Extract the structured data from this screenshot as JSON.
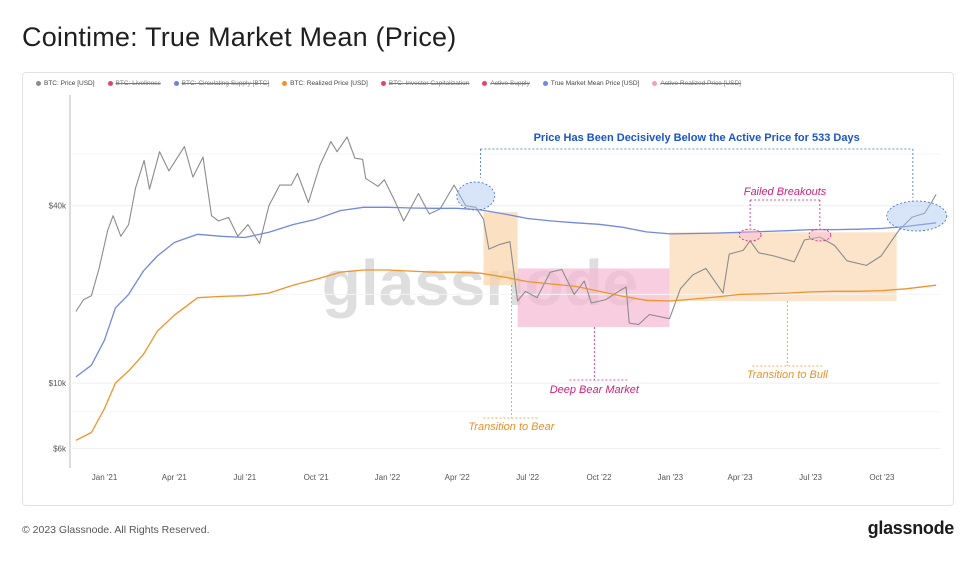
{
  "page": {
    "title": "Cointime: True Market Mean (Price)",
    "copyright": "© 2023 Glassnode. All Rights Reserved.",
    "logo": "glassnode",
    "watermark": "glassnode"
  },
  "legend": [
    {
      "label": "BTC: Price [USD]",
      "color": "#8c8c8c",
      "enabled": true
    },
    {
      "label": "BTC: Liveliness",
      "color": "#e0466b",
      "enabled": false
    },
    {
      "label": "BTC: Circulating Supply [BTC]",
      "color": "#6f82d8",
      "enabled": false
    },
    {
      "label": "BTC: Realized Price [USD]",
      "color": "#f0932b",
      "enabled": true
    },
    {
      "label": "BTC: Investor Capitalization",
      "color": "#e0466b",
      "enabled": false
    },
    {
      "label": "Active Supply",
      "color": "#e0466b",
      "enabled": false
    },
    {
      "label": "True Market Mean Price [USD]",
      "color": "#7189e0",
      "enabled": true
    },
    {
      "label": "Active Realized Price [USD]",
      "color": "#f2a1b5",
      "enabled": false
    }
  ],
  "chart_data": {
    "type": "line",
    "yscale": "log",
    "ylim": [
      5400,
      95000
    ],
    "xlim": [
      "2020-11-20",
      "2023-12-15"
    ],
    "y_ticks": [
      {
        "value": 6000,
        "label": "$6k"
      },
      {
        "value": 10000,
        "label": "$10k"
      },
      {
        "value": 40000,
        "label": "$40k"
      }
    ],
    "x_ticks": [
      {
        "date": "2021-01-01",
        "label": "Jan '21"
      },
      {
        "date": "2021-04-01",
        "label": "Apr '21"
      },
      {
        "date": "2021-07-01",
        "label": "Jul '21"
      },
      {
        "date": "2021-10-01",
        "label": "Oct '21"
      },
      {
        "date": "2022-01-01",
        "label": "Jan '22"
      },
      {
        "date": "2022-04-01",
        "label": "Apr '22"
      },
      {
        "date": "2022-07-01",
        "label": "Jul '22"
      },
      {
        "date": "2022-10-01",
        "label": "Oct '22"
      },
      {
        "date": "2023-01-01",
        "label": "Jan '23"
      },
      {
        "date": "2023-04-01",
        "label": "Apr '23"
      },
      {
        "date": "2023-07-01",
        "label": "Jul '23"
      },
      {
        "date": "2023-10-01",
        "label": "Oct '23"
      }
    ],
    "series": [
      {
        "name": "BTC: Price [USD]",
        "color": "#8c8c8c",
        "points": [
          [
            "2020-11-25",
            17500
          ],
          [
            "2020-12-05",
            19200
          ],
          [
            "2020-12-15",
            19800
          ],
          [
            "2020-12-25",
            24500
          ],
          [
            "2021-01-05",
            33000
          ],
          [
            "2021-01-12",
            37000
          ],
          [
            "2021-01-22",
            31500
          ],
          [
            "2021-02-01",
            34500
          ],
          [
            "2021-02-10",
            46000
          ],
          [
            "2021-02-21",
            57000
          ],
          [
            "2021-02-28",
            45500
          ],
          [
            "2021-03-13",
            61000
          ],
          [
            "2021-03-25",
            52500
          ],
          [
            "2021-04-14",
            63500
          ],
          [
            "2021-04-25",
            50000
          ],
          [
            "2021-05-08",
            58500
          ],
          [
            "2021-05-19",
            37000
          ],
          [
            "2021-05-28",
            35500
          ],
          [
            "2021-06-10",
            36500
          ],
          [
            "2021-06-22",
            31500
          ],
          [
            "2021-07-05",
            34500
          ],
          [
            "2021-07-20",
            29800
          ],
          [
            "2021-08-01",
            40000
          ],
          [
            "2021-08-15",
            47000
          ],
          [
            "2021-08-30",
            47000
          ],
          [
            "2021-09-07",
            51500
          ],
          [
            "2021-09-21",
            41000
          ],
          [
            "2021-10-06",
            55000
          ],
          [
            "2021-10-20",
            66000
          ],
          [
            "2021-10-28",
            61000
          ],
          [
            "2021-11-10",
            68500
          ],
          [
            "2021-11-20",
            58000
          ],
          [
            "2021-11-30",
            57500
          ],
          [
            "2021-12-04",
            49500
          ],
          [
            "2021-12-20",
            46500
          ],
          [
            "2021-12-28",
            49000
          ],
          [
            "2022-01-10",
            41800
          ],
          [
            "2022-01-22",
            35500
          ],
          [
            "2022-02-10",
            44000
          ],
          [
            "2022-02-24",
            37500
          ],
          [
            "2022-03-10",
            39000
          ],
          [
            "2022-03-28",
            47000
          ],
          [
            "2022-04-12",
            40000
          ],
          [
            "2022-04-25",
            39500
          ],
          [
            "2022-05-05",
            36000
          ],
          [
            "2022-05-12",
            28500
          ],
          [
            "2022-05-25",
            29500
          ],
          [
            "2022-06-08",
            30200
          ],
          [
            "2022-06-18",
            19000
          ],
          [
            "2022-06-28",
            20500
          ],
          [
            "2022-07-13",
            19500
          ],
          [
            "2022-07-30",
            23800
          ],
          [
            "2022-08-14",
            24300
          ],
          [
            "2022-08-30",
            20000
          ],
          [
            "2022-09-12",
            22200
          ],
          [
            "2022-09-21",
            18700
          ],
          [
            "2022-10-10",
            19200
          ],
          [
            "2022-10-28",
            20600
          ],
          [
            "2022-11-05",
            21200
          ],
          [
            "2022-11-09",
            16000
          ],
          [
            "2022-11-21",
            15800
          ],
          [
            "2022-12-05",
            17100
          ],
          [
            "2022-12-31",
            16550
          ],
          [
            "2023-01-14",
            20900
          ],
          [
            "2023-01-30",
            23300
          ],
          [
            "2023-02-16",
            24500
          ],
          [
            "2023-03-10",
            20200
          ],
          [
            "2023-03-18",
            27400
          ],
          [
            "2023-04-05",
            28200
          ],
          [
            "2023-04-14",
            30400
          ],
          [
            "2023-04-25",
            27700
          ],
          [
            "2023-05-15",
            27000
          ],
          [
            "2023-06-10",
            25800
          ],
          [
            "2023-06-23",
            30600
          ],
          [
            "2023-07-13",
            31300
          ],
          [
            "2023-08-01",
            29300
          ],
          [
            "2023-08-17",
            26000
          ],
          [
            "2023-09-11",
            25100
          ],
          [
            "2023-09-30",
            27000
          ],
          [
            "2023-10-23",
            33000
          ],
          [
            "2023-11-09",
            36600
          ],
          [
            "2023-11-25",
            37700
          ],
          [
            "2023-12-05",
            41500
          ],
          [
            "2023-12-10",
            43700
          ]
        ]
      },
      {
        "name": "True Market Mean Price [USD]",
        "color": "#7189e0",
        "points": [
          [
            "2020-11-25",
            10500
          ],
          [
            "2020-12-15",
            11500
          ],
          [
            "2021-01-01",
            14000
          ],
          [
            "2021-01-15",
            18000
          ],
          [
            "2021-02-01",
            20000
          ],
          [
            "2021-02-20",
            24000
          ],
          [
            "2021-03-10",
            27000
          ],
          [
            "2021-04-01",
            30000
          ],
          [
            "2021-05-01",
            32000
          ],
          [
            "2021-06-01",
            31500
          ],
          [
            "2021-07-01",
            31200
          ],
          [
            "2021-08-01",
            32500
          ],
          [
            "2021-09-01",
            34500
          ],
          [
            "2021-10-01",
            36000
          ],
          [
            "2021-11-01",
            38500
          ],
          [
            "2021-12-01",
            39500
          ],
          [
            "2022-01-01",
            39500
          ],
          [
            "2022-02-01",
            39300
          ],
          [
            "2022-03-01",
            39200
          ],
          [
            "2022-04-01",
            39200
          ],
          [
            "2022-05-01",
            38700
          ],
          [
            "2022-06-01",
            37500
          ],
          [
            "2022-07-01",
            36200
          ],
          [
            "2022-08-01",
            35500
          ],
          [
            "2022-09-01",
            35000
          ],
          [
            "2022-10-01",
            34600
          ],
          [
            "2022-11-01",
            33800
          ],
          [
            "2022-12-01",
            32600
          ],
          [
            "2023-01-01",
            32100
          ],
          [
            "2023-02-01",
            32200
          ],
          [
            "2023-03-01",
            32300
          ],
          [
            "2023-04-01",
            32500
          ],
          [
            "2023-05-01",
            32700
          ],
          [
            "2023-06-01",
            32900
          ],
          [
            "2023-07-01",
            33200
          ],
          [
            "2023-08-01",
            33200
          ],
          [
            "2023-09-01",
            33300
          ],
          [
            "2023-10-01",
            33500
          ],
          [
            "2023-11-01",
            34000
          ],
          [
            "2023-12-10",
            35000
          ]
        ]
      },
      {
        "name": "BTC: Realized Price [USD]",
        "color": "#f0932b",
        "points": [
          [
            "2020-11-25",
            6400
          ],
          [
            "2020-12-15",
            6800
          ],
          [
            "2021-01-01",
            8200
          ],
          [
            "2021-01-15",
            10000
          ],
          [
            "2021-02-01",
            11000
          ],
          [
            "2021-02-20",
            12500
          ],
          [
            "2021-03-10",
            15000
          ],
          [
            "2021-04-01",
            17000
          ],
          [
            "2021-05-01",
            19500
          ],
          [
            "2021-06-01",
            19700
          ],
          [
            "2021-07-01",
            19800
          ],
          [
            "2021-08-01",
            20200
          ],
          [
            "2021-09-01",
            21500
          ],
          [
            "2021-10-01",
            22500
          ],
          [
            "2021-11-01",
            23800
          ],
          [
            "2021-12-01",
            24200
          ],
          [
            "2022-01-01",
            24200
          ],
          [
            "2022-02-01",
            24000
          ],
          [
            "2022-03-01",
            23800
          ],
          [
            "2022-04-01",
            23800
          ],
          [
            "2022-05-01",
            23600
          ],
          [
            "2022-06-01",
            22900
          ],
          [
            "2022-07-01",
            22100
          ],
          [
            "2022-08-01",
            21700
          ],
          [
            "2022-09-01",
            21300
          ],
          [
            "2022-10-01",
            20500
          ],
          [
            "2022-11-01",
            19700
          ],
          [
            "2022-12-01",
            19100
          ],
          [
            "2023-01-01",
            19000
          ],
          [
            "2023-02-01",
            19300
          ],
          [
            "2023-03-01",
            19600
          ],
          [
            "2023-04-01",
            20000
          ],
          [
            "2023-05-01",
            20100
          ],
          [
            "2023-06-01",
            20200
          ],
          [
            "2023-07-01",
            20400
          ],
          [
            "2023-08-01",
            20500
          ],
          [
            "2023-09-01",
            20500
          ],
          [
            "2023-10-01",
            20600
          ],
          [
            "2023-11-01",
            20900
          ],
          [
            "2023-12-10",
            21500
          ]
        ]
      }
    ],
    "annotations": [
      {
        "text": "Price Has Been Decisively Below the Active Price for 533 Days",
        "color": "#1a55c9"
      },
      {
        "text": "Failed Breakouts",
        "color": "#d41e7a"
      },
      {
        "text": "Deep Bear Market",
        "color": "#d41e7a"
      },
      {
        "text": "Transition to Bear",
        "color": "#e8922a"
      },
      {
        "text": "Transition to Bull",
        "color": "#e8922a"
      }
    ],
    "shaded_regions": [
      {
        "from": "2022-05-05",
        "to": "2022-06-18",
        "low": 21500,
        "high": 38000,
        "color": "#fad3a8"
      },
      {
        "from": "2022-06-18",
        "to": "2022-12-31",
        "low": 15500,
        "high": 24500,
        "color": "#f7b8d3"
      },
      {
        "from": "2022-12-31",
        "to": "2023-10-20",
        "low": 19000,
        "high": 32500,
        "color": "#fad9b3"
      }
    ]
  }
}
